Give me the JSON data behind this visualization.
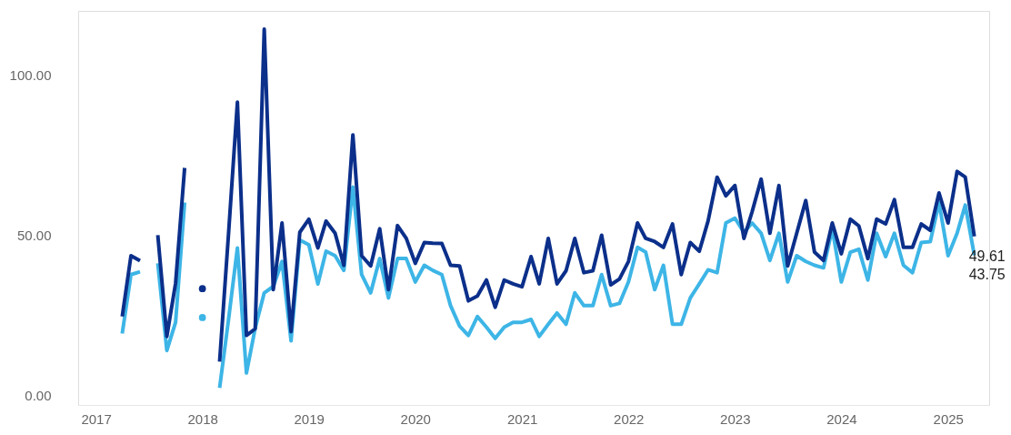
{
  "chart_data": {
    "type": "line",
    "x": [
      "2017-04",
      "2017-05",
      "2017-06",
      "2017-07",
      "2017-08",
      "2017-09",
      "2017-10",
      "2017-11",
      "2017-12",
      "2018-01",
      "2018-02",
      "2018-03",
      "2018-04",
      "2018-05",
      "2018-06",
      "2018-07",
      "2018-08",
      "2018-09",
      "2018-10",
      "2018-11",
      "2018-12",
      "2019-01",
      "2019-02",
      "2019-03",
      "2019-04",
      "2019-05",
      "2019-06",
      "2019-07",
      "2019-08",
      "2019-09",
      "2019-10",
      "2019-11",
      "2019-12",
      "2020-01",
      "2020-02",
      "2020-03",
      "2020-04",
      "2020-05",
      "2020-06",
      "2020-07",
      "2020-08",
      "2020-09",
      "2020-10",
      "2020-11",
      "2020-12",
      "2021-01",
      "2021-02",
      "2021-03",
      "2021-04",
      "2021-05",
      "2021-06",
      "2021-07",
      "2021-08",
      "2021-09",
      "2021-10",
      "2021-11",
      "2021-12",
      "2022-01",
      "2022-02",
      "2022-03",
      "2022-04",
      "2022-05",
      "2022-06",
      "2022-07",
      "2022-08",
      "2022-09",
      "2022-10",
      "2022-11",
      "2022-12",
      "2023-01",
      "2023-02",
      "2023-03",
      "2023-04",
      "2023-05",
      "2023-06",
      "2023-07",
      "2023-08",
      "2023-09",
      "2023-10",
      "2023-11",
      "2023-12",
      "2024-01",
      "2024-02",
      "2024-03",
      "2024-04",
      "2024-05",
      "2024-06",
      "2024-07",
      "2024-08",
      "2024-09",
      "2024-10",
      "2024-11",
      "2024-12",
      "2025-01",
      "2025-02",
      "2025-03",
      "2025-04"
    ],
    "series": [
      {
        "color": "#0b2f8a",
        "values": [
          24.6,
          43.6,
          42,
          null,
          50,
          18.4,
          35,
          71,
          null,
          33.3,
          null,
          10.5,
          51,
          91.5,
          18.7,
          20.8,
          114.3,
          33,
          53.8,
          19.9,
          50.9,
          55,
          46,
          54.4,
          50.6,
          40.6,
          81.3,
          43.6,
          40.4,
          52,
          33,
          53,
          49,
          41.2,
          47.7,
          47.5,
          47.4,
          40.6,
          40.4,
          29.5,
          31,
          36,
          27.5,
          36,
          34.8,
          33.9,
          43.3,
          34.8,
          49,
          34.8,
          38.9,
          49,
          38.3,
          38.9,
          50,
          34.5,
          36.3,
          41.8,
          53.8,
          49,
          48,
          46.2,
          53.5,
          37.7,
          47.7,
          45,
          54.4,
          68.1,
          62.3,
          65.5,
          49,
          57.3,
          67.5,
          50.6,
          65.5,
          40.4,
          50.6,
          60.8,
          44.7,
          42.1,
          53.8,
          44.2,
          55,
          52.9,
          42.7,
          55,
          53.5,
          61.1,
          46.2,
          46.2,
          53.5,
          51.5,
          63.2,
          53.8,
          69.9,
          68.1,
          49.61
        ],
        "value_labels": [
          null,
          null,
          null,
          null,
          null,
          null,
          null,
          null,
          null,
          null,
          null,
          null,
          null,
          null,
          null,
          null,
          null,
          null,
          null,
          null,
          null,
          null,
          null,
          null,
          null,
          null,
          null,
          null,
          null,
          null,
          null,
          null,
          null,
          null,
          null,
          null,
          null,
          null,
          null,
          null,
          null,
          null,
          null,
          null,
          null,
          null,
          null,
          null,
          null,
          null,
          null,
          null,
          null,
          null,
          null,
          null,
          null,
          null,
          null,
          null,
          null,
          null,
          null,
          null,
          null,
          null,
          null,
          null,
          null,
          null,
          null,
          null,
          null,
          null,
          null,
          null,
          null,
          null,
          null,
          null,
          null,
          null,
          null,
          null,
          null,
          null,
          null,
          null,
          null,
          null,
          null,
          null,
          null,
          null,
          null,
          null,
          "49.61"
        ]
      },
      {
        "color": "#3db5e6",
        "values": [
          19.3,
          37.7,
          38.6,
          null,
          41.2,
          14,
          22.8,
          60.2,
          null,
          24.3,
          null,
          2.3,
          24,
          46,
          7,
          21,
          32,
          34,
          41.8,
          17,
          48.5,
          47,
          34.8,
          45,
          43.6,
          39,
          65,
          37.7,
          32,
          42.7,
          30.4,
          42.7,
          42.7,
          35.4,
          40.6,
          39,
          37.7,
          28,
          21.6,
          18.7,
          24.6,
          21.3,
          17.8,
          21.3,
          22.8,
          22.8,
          23.7,
          18.4,
          22.2,
          25.7,
          22.2,
          32,
          28,
          28,
          37.7,
          28,
          28.7,
          35.4,
          46.2,
          44.7,
          33,
          40.6,
          22.2,
          22.2,
          30.4,
          34.8,
          39.2,
          38.3,
          53.8,
          55.3,
          50.9,
          53.8,
          50.6,
          42.1,
          50.6,
          35.4,
          43.6,
          41.8,
          40.6,
          39.8,
          52,
          35.4,
          44.7,
          45.6,
          36,
          50.6,
          43.3,
          50.6,
          40.6,
          38.3,
          47.7,
          48,
          60.2,
          43.6,
          50.6,
          59.4,
          43.75
        ],
        "value_labels": [
          null,
          null,
          null,
          null,
          null,
          null,
          null,
          null,
          null,
          null,
          null,
          null,
          null,
          null,
          null,
          null,
          null,
          null,
          null,
          null,
          null,
          null,
          null,
          null,
          null,
          null,
          null,
          null,
          null,
          null,
          null,
          null,
          null,
          null,
          null,
          null,
          null,
          null,
          null,
          null,
          null,
          null,
          null,
          null,
          null,
          null,
          null,
          null,
          null,
          null,
          null,
          null,
          null,
          null,
          null,
          null,
          null,
          null,
          null,
          null,
          null,
          null,
          null,
          null,
          null,
          null,
          null,
          null,
          null,
          null,
          null,
          null,
          null,
          null,
          null,
          null,
          null,
          null,
          null,
          null,
          null,
          null,
          null,
          null,
          null,
          null,
          null,
          null,
          null,
          null,
          null,
          null,
          null,
          null,
          null,
          null,
          "43.75"
        ]
      }
    ],
    "xlim": [
      "2016-11-01",
      "2025-05-22"
    ],
    "xticks": [
      "2017",
      "2018",
      "2019",
      "2020",
      "2021",
      "2022",
      "2023",
      "2024",
      "2025"
    ],
    "ylim": [
      -3,
      120
    ],
    "yticks": [
      {
        "value": 0,
        "label": "0.00"
      },
      {
        "value": 50,
        "label": "50.00"
      },
      {
        "value": 100,
        "label": "100.00"
      }
    ],
    "grid": false,
    "line_style": "solid"
  }
}
